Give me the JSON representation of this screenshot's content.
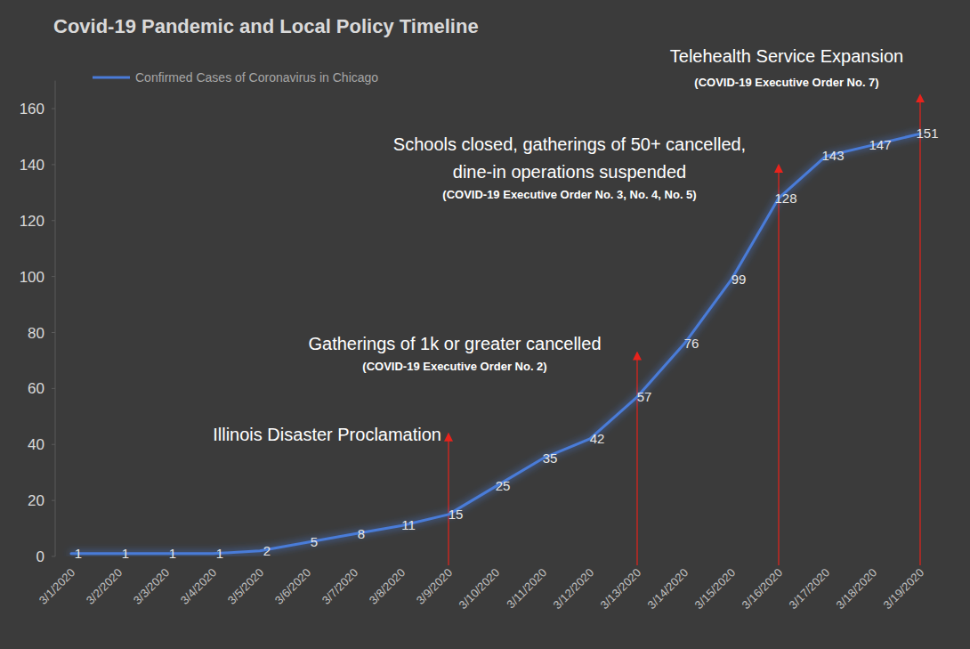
{
  "chart_data": {
    "type": "line",
    "title": "Covid-19 Pandemic and Local Policy Timeline",
    "categories": [
      "3/1/2020",
      "3/2/2020",
      "3/3/2020",
      "3/4/2020",
      "3/5/2020",
      "3/6/2020",
      "3/7/2020",
      "3/8/2020",
      "3/9/2020",
      "3/10/2020",
      "3/11/2020",
      "3/12/2020",
      "3/13/2020",
      "3/14/2020",
      "3/15/2020",
      "3/16/2020",
      "3/17/2020",
      "3/18/2020",
      "3/19/2020"
    ],
    "series": [
      {
        "name": "Confirmed Cases of Coronavirus in Chicago",
        "color": "#4a7bd8",
        "values": [
          1,
          1,
          1,
          1,
          2,
          5,
          8,
          11,
          15,
          25,
          35,
          42,
          57,
          76,
          99,
          128,
          143,
          147,
          151
        ]
      }
    ],
    "ylim": [
      0,
      170
    ],
    "yticks": [
      0,
      20,
      40,
      60,
      80,
      100,
      120,
      140,
      160
    ],
    "grid": false,
    "legend": "top-left",
    "data_labels": true,
    "annotations": [
      {
        "x": "3/9/2020",
        "y": 44,
        "lines": [
          "Illinois Disaster Proclamation"
        ]
      },
      {
        "x": "3/13/2020",
        "y": 73,
        "lines": [
          "Gatherings of 1k or greater cancelled",
          "(COVID-19 Executive Order No. 2)"
        ]
      },
      {
        "x": "3/16/2020",
        "y": 140,
        "lines": [
          "Schools closed, gatherings of 50+ cancelled,",
          "dine-in operations suspended",
          "(COVID-19 Executive Order No. 3, No. 4, No. 5)"
        ]
      },
      {
        "x": "3/19/2020",
        "y": 165,
        "lines": [
          "Telehealth Service Expansion",
          "(COVID-19 Executive Order No. 7)"
        ]
      }
    ]
  }
}
